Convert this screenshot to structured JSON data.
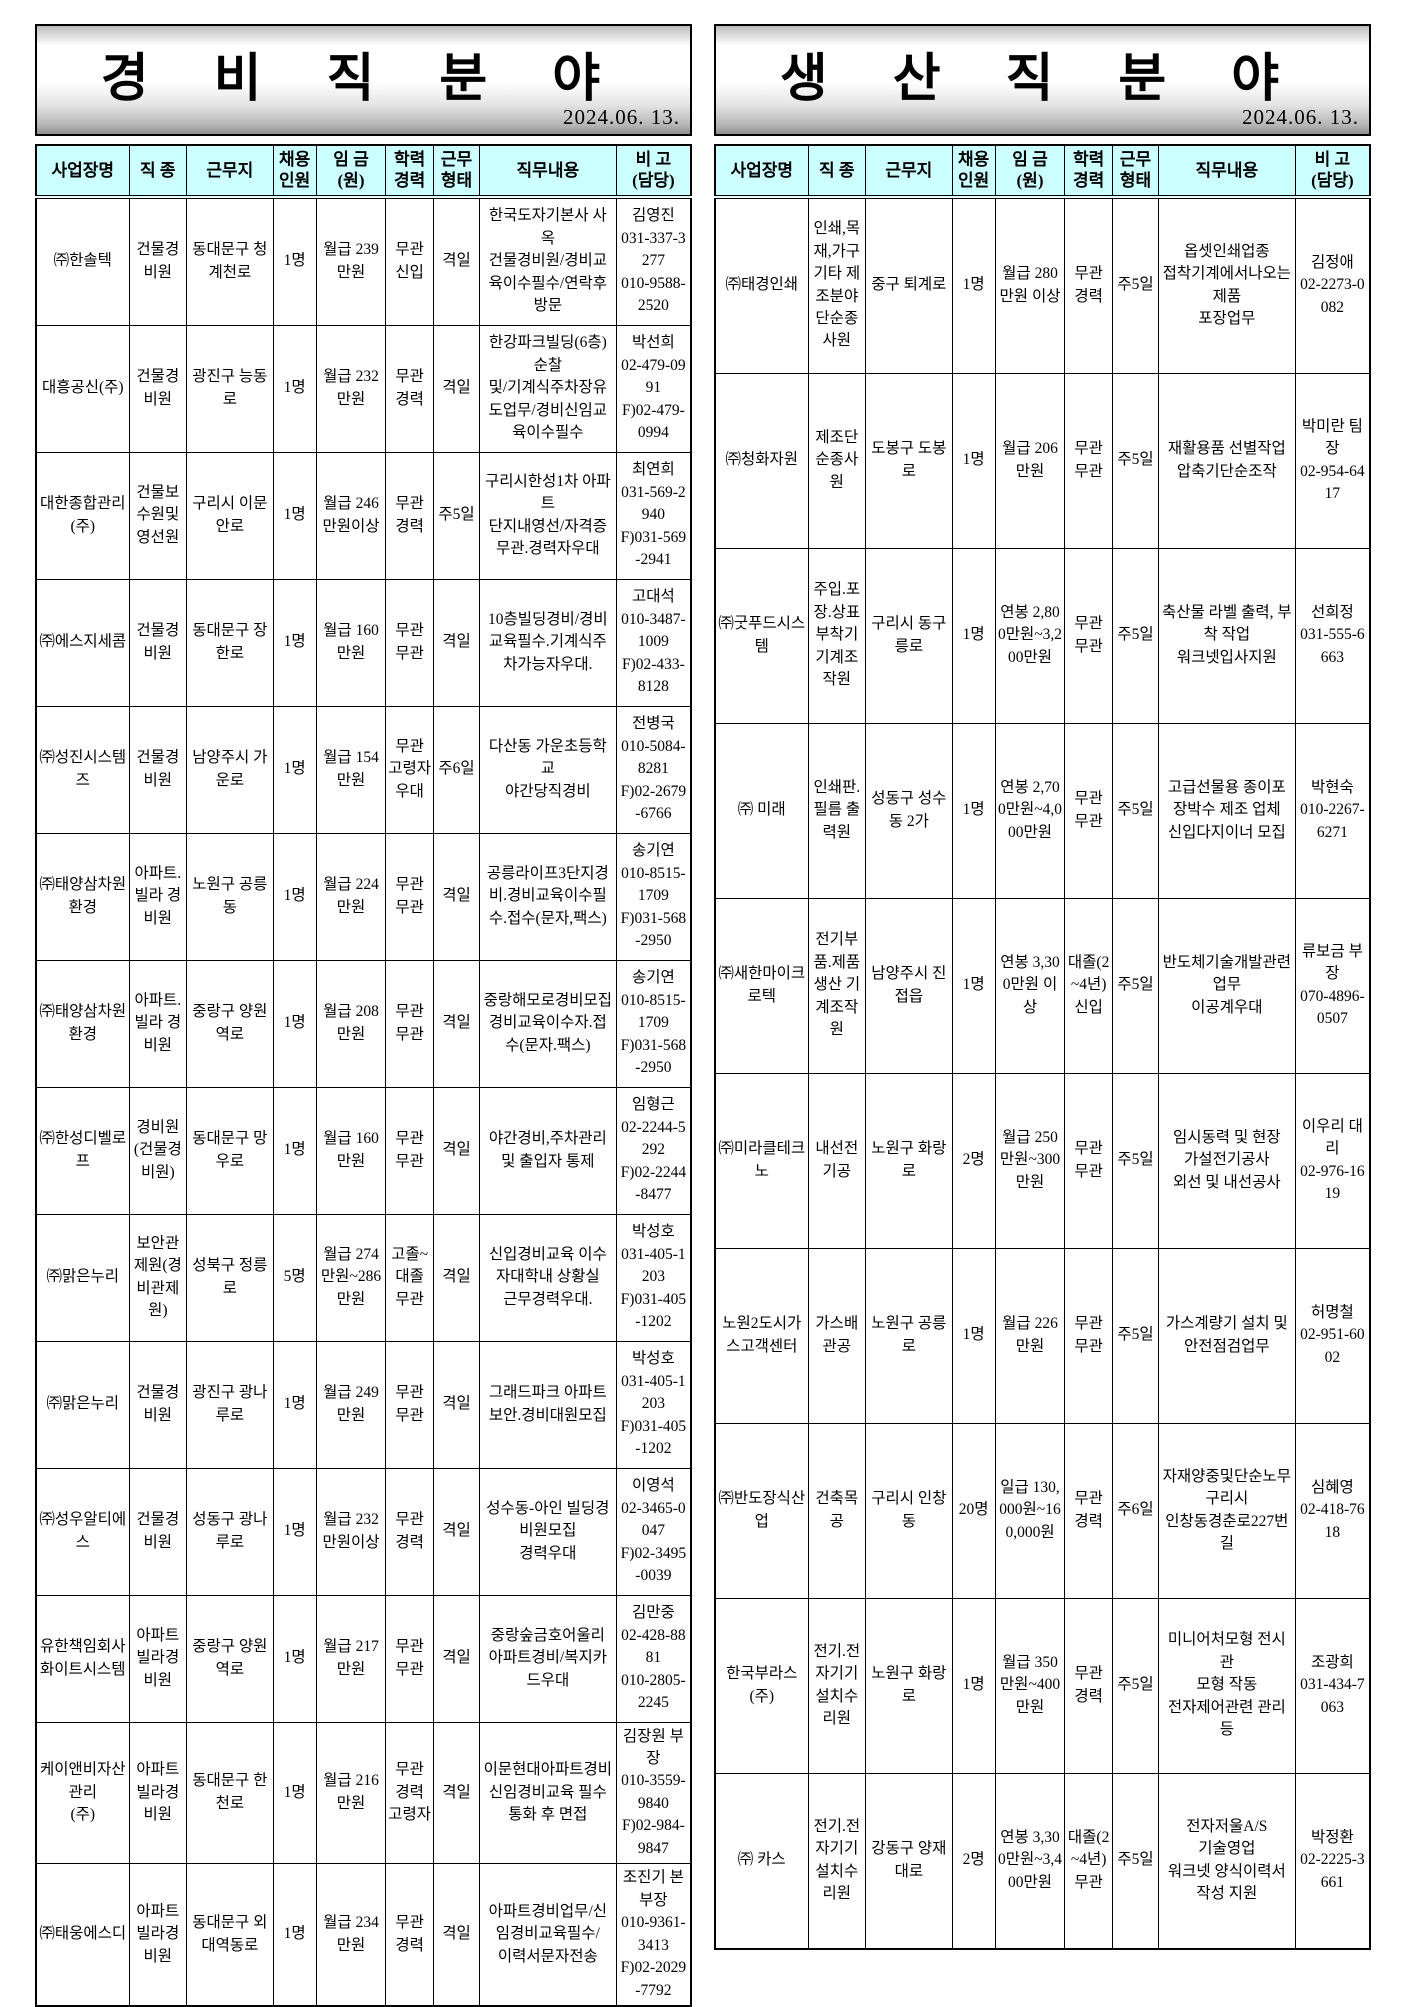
{
  "left_table": {
    "title": "경 비 직 분 야",
    "date": "2024.06. 13.",
    "headers": [
      "사업장명",
      "직 종",
      "근무지",
      "채용\n인원",
      "임 금\n(원)",
      "학력\n경력",
      "근무\n형태",
      "직무내용",
      "비 고\n(담당)"
    ],
    "rows": [
      [
        "㈜한솔텍",
        "건물경비원",
        "동대문구 청계천로",
        "1명",
        "월급 239만원",
        "무관 신입",
        "격일",
        "한국도자기본사 사옥\n건물경비원/경비교육이수필수/연락후 방문",
        "김영진\n031-337-3277\n010-9588-2520"
      ],
      [
        "대흥공신(주)",
        "건물경비원",
        "광진구 능동로",
        "1명",
        "월급 232만원",
        "무관 경력",
        "격일",
        "한강파크빌딩(6층)순찰\n및/기계식주차장유도업무/경비신임교육이수필수",
        "박선희\n02-479-0991\nF)02-479-0994"
      ],
      [
        "대한종합관리\n(주)",
        "건물보수원및 영선원",
        "구리시 이문안로",
        "1명",
        "월급 246만원이상",
        "무관 경력",
        "주5일",
        "구리시한성1차 아파트\n단지내영선/자격증무관.경력자우대",
        "최연희\n031-569-2940\nF)031-569-2941"
      ],
      [
        "㈜에스지세콤",
        "건물경비원",
        "동대문구 장한로",
        "1명",
        "월급 160만원",
        "무관 무관",
        "격일",
        "10층빌딩경비/경비교육필수.기계식주차가능자우대.",
        "고대석\n010-3487-1009\nF)02-433-8128"
      ],
      [
        "㈜성진시스템즈",
        "건물경비원",
        "남양주시 가운로",
        "1명",
        "월급 154만원",
        "무관 고령자우대",
        "주6일",
        "다산동 가운초등학교\n야간당직경비",
        "전병국\n010-5084-8281\nF)02-2679-6766"
      ],
      [
        "㈜태양삼차원환경",
        "아파트.빌라 경비원",
        "노원구 공릉동",
        "1명",
        "월급 224만원",
        "무관 무관",
        "격일",
        "공릉라이프3단지경비.경비교육이수필수.접수(문자,팩스)",
        "송기연\n010-8515-1709\nF)031-568-2950"
      ],
      [
        "㈜태양삼차원환경",
        "아파트.빌라 경비원",
        "중랑구 양원역로",
        "1명",
        "월급 208만원",
        "무관 무관",
        "격일",
        "중랑해모로경비모집\n경비교육이수자.접수(문자.팩스)",
        "송기연\n010-8515-1709\nF)031-568-2950"
      ],
      [
        "㈜한성디벨로프",
        "경비원(건물경비원)",
        "동대문구 망우로",
        "1명",
        "월급 160만원",
        "무관 무관",
        "격일",
        "야간경비,주차관리 및 출입자 통제",
        "임형근\n02-2244-5292\nF)02-2244-8477"
      ],
      [
        "㈜맑은누리",
        "보안관제원(경비관제원)",
        "성북구 정릉로",
        "5명",
        "월급 274만원~286만원",
        "고졸~대졸 무관",
        "격일",
        "신입경비교육 이수자대학내 상황실\n근무경력우대.",
        "박성호\n031-405-1203\nF)031-405-1202"
      ],
      [
        "㈜맑은누리",
        "건물경비원",
        "광진구 광나루로",
        "1명",
        "월급 249만원",
        "무관 무관",
        "격일",
        "그래드파크 아파트보안.경비대원모집",
        "박성호\n031-405-1203\nF)031-405-1202"
      ],
      [
        "㈜성우알티에스",
        "건물경비원",
        "성동구 광나루로",
        "1명",
        "월급 232만원이상",
        "무관 경력",
        "격일",
        "성수동-아인 빌딩경비원모집\n경력우대",
        "이영석\n02-3465-0047\nF)02-3495-0039"
      ],
      [
        "유한책임회사 화이트시스템",
        "아파트빌라경비원",
        "중랑구 양원역로",
        "1명",
        "월급 217만원",
        "무관 무관",
        "격일",
        "중랑숲금호어울리\n아파트경비/복지카드우대",
        "김만중\n02-428-8881\n010-2805-2245"
      ],
      [
        "케이앤비자산관리\n(주)",
        "아파트빌라경비원",
        "동대문구 한천로",
        "1명",
        "월급 216만원",
        "무관 경력 고령자",
        "격일",
        "이문현대아파트경비\n신임경비교육 필수\n통화 후 면접",
        "김장원 부장\n010-3559-9840\nF)02-984-9847"
      ],
      [
        "㈜태웅에스디",
        "아파트빌라경비원",
        "동대문구 외대역동로",
        "1명",
        "월급 234만원",
        "무관 경력",
        "격일",
        "아파트경비업무/신임경비교육필수/\n이력서문자전송",
        "조진기 본부장\n010-9361-3413\nF)02-2029-7792"
      ]
    ]
  },
  "right_table": {
    "title": "생 산 직 분 야",
    "date": "2024.06. 13.",
    "headers": [
      "사업장명",
      "직 종",
      "근무지",
      "채용\n인원",
      "임 금\n(원)",
      "학력\n경력",
      "근무\n형태",
      "직무내용",
      "비 고\n(담당)"
    ],
    "rows": [
      [
        "㈜태경인쇄",
        "인쇄,목재,가구 기타 제조분야 단순종사원",
        "중구 퇴계로",
        "1명",
        "월급 280만원 이상",
        "무관 경력",
        "주5일",
        "옵셋인쇄업종\n접착기계에서나오는 제품\n포장업무",
        "김정애\n02-2273-0082"
      ],
      [
        "㈜청화자원",
        "제조단순종사원",
        "도봉구 도봉로",
        "1명",
        "월급 206만원",
        "무관 무관",
        "주5일",
        "재활용품 선별작업\n압축기단순조작",
        "박미란 팀장\n02-954-6417"
      ],
      [
        "㈜굿푸드시스템",
        "주입.포장.상표부착기 기계조작원",
        "구리시 동구릉로",
        "1명",
        "연봉 2,800만원~3,200만원",
        "무관 무관",
        "주5일",
        "축산물 라벨 출력, 부착 작업\n워크넷입사지원",
        "선희정\n031-555-6663"
      ],
      [
        "㈜ 미래",
        "인쇄판.필름 출력원",
        "성동구 성수동 2가",
        "1명",
        "연봉 2,700만원~4,000만원",
        "무관 무관",
        "주5일",
        "고급선물용 종이포장박수 제조 업체\n신입다지이너 모집",
        "박현숙\n010-2267-6271"
      ],
      [
        "㈜새한마이크로텍",
        "전기부품.제품생산 기계조작원",
        "남양주시 진접읍",
        "1명",
        "연봉 3,300만원 이상",
        "대졸(2~4년) 신입",
        "주5일",
        "반도체기술개발관련업무\n이공계우대",
        "류보금 부장\n070-4896-0507"
      ],
      [
        "㈜미라클테크노",
        "내선전기공",
        "노원구 화랑로",
        "2명",
        "월급 250만원~300만원",
        "무관 무관",
        "주5일",
        "임시동력 및 현장\n가설전기공사\n외선 및 내선공사",
        "이우리 대리\n02-976-1619"
      ],
      [
        "노원2도시가스고객센터",
        "가스배관공",
        "노원구 공릉로",
        "1명",
        "월급 226만원",
        "무관 무관",
        "주5일",
        "가스계량기 설치 및\n안전점검업무",
        "허명철\n02-951-6002"
      ],
      [
        "㈜반도장식산업",
        "건축목공",
        "구리시 인창동",
        "20명",
        "일급 130,000원~160,000원",
        "무관 경력",
        "주6일",
        "자재양중및단순노무\n구리시\n인창동경춘로227번길",
        "심혜영\n02-418-7618"
      ],
      [
        "한국부라스(주)",
        "전기.전자기기 설치수리원",
        "노원구 화랑로",
        "1명",
        "월급 350만원~400만원",
        "무관 경력",
        "주5일",
        "미니어처모형 전시관\n모형 작동\n전자제어관련 관리등",
        "조광희\n031-434-7063"
      ],
      [
        "㈜ 카스",
        "전기.전자기기 설치수리원",
        "강동구 양재대로",
        "2명",
        "연봉 3,300만원~3,400만원",
        "대졸(2~4년) 무관",
        "주5일",
        "전자저울A/S\n기술영업\n워크넷 양식이력서 작성 지원",
        "박정환\n02-2225-3661"
      ]
    ]
  }
}
